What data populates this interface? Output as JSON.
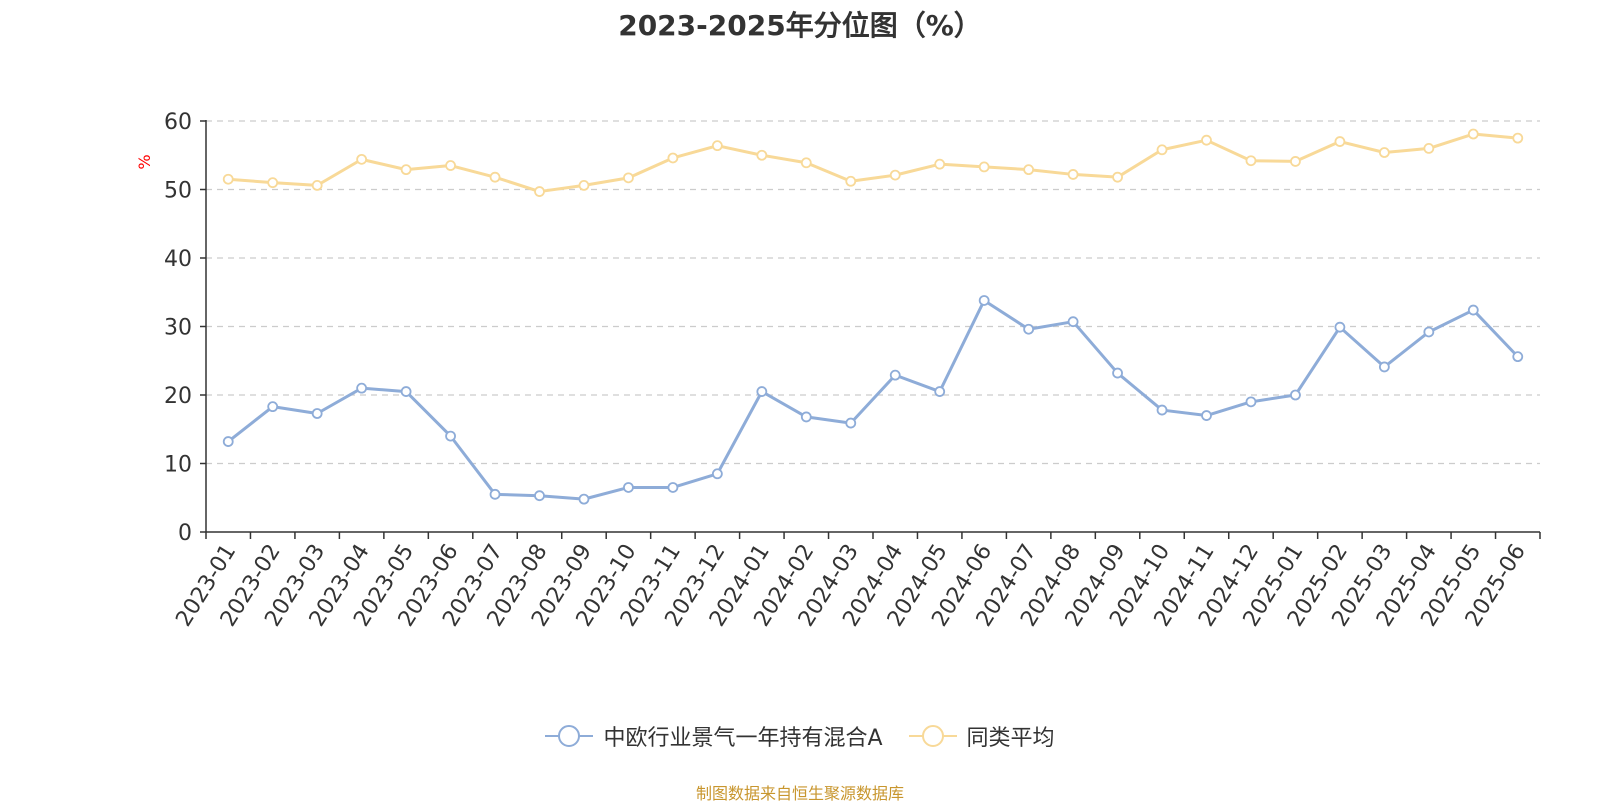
{
  "chart_data": {
    "type": "line",
    "title": "2023-2025年分位图（%）",
    "ylabel": "%",
    "ylim": [
      0,
      60
    ],
    "yticks": [
      0,
      10,
      20,
      30,
      40,
      50,
      60
    ],
    "grid": true,
    "legend_position": "bottom-center",
    "categories": [
      "2023-01",
      "2023-02",
      "2023-03",
      "2023-04",
      "2023-05",
      "2023-06",
      "2023-07",
      "2023-08",
      "2023-09",
      "2023-10",
      "2023-11",
      "2023-12",
      "2024-01",
      "2024-02",
      "2024-03",
      "2024-04",
      "2024-05",
      "2024-06",
      "2024-07",
      "2024-08",
      "2024-09",
      "2024-10",
      "2024-11",
      "2024-12",
      "2025-01",
      "2025-02",
      "2025-03",
      "2025-04",
      "2025-05",
      "2025-06"
    ],
    "series": [
      {
        "name": "中欧行业景气一年持有混合A",
        "color": "#8eacd8",
        "values": [
          13.2,
          18.3,
          17.3,
          21.0,
          20.5,
          14.0,
          5.5,
          5.3,
          4.8,
          6.5,
          6.5,
          8.5,
          20.5,
          16.8,
          15.9,
          22.9,
          20.5,
          33.8,
          29.6,
          30.7,
          23.2,
          17.8,
          17.0,
          19.0,
          20.0,
          29.9,
          24.1,
          29.2,
          32.4,
          25.6
        ]
      },
      {
        "name": "同类平均",
        "color": "#f8d998",
        "values": [
          51.5,
          51.0,
          50.6,
          54.4,
          52.9,
          53.5,
          51.8,
          49.7,
          50.6,
          51.7,
          54.6,
          56.4,
          55.0,
          53.9,
          51.2,
          52.1,
          53.7,
          53.3,
          52.9,
          52.2,
          51.8,
          55.8,
          57.2,
          54.2,
          54.1,
          57.0,
          55.4,
          56.0,
          58.1,
          57.5
        ]
      }
    ]
  },
  "source_text": "制图数据来自恒生聚源数据库",
  "colors": {
    "axis": "#333333",
    "grid": "#cccccc",
    "ylabel": "#ff0000",
    "source": "#c8962e"
  }
}
